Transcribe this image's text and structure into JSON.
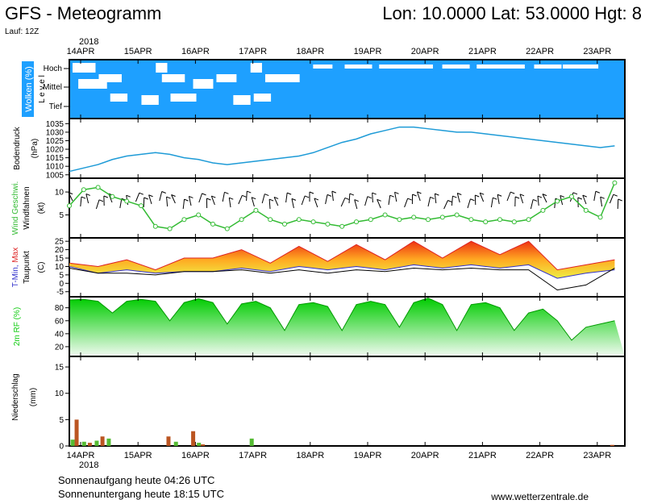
{
  "header": {
    "title": "GFS - Meteogramm",
    "location": "Lon: 10.0000 Lat: 53.0000 Hgt: 8",
    "run": "Lauf: 12Z"
  },
  "dates": {
    "year": "2018",
    "days": [
      "14APR",
      "15APR",
      "16APR",
      "17APR",
      "18APR",
      "19APR",
      "20APR",
      "21APR",
      "22APR",
      "23APR"
    ]
  },
  "footer": {
    "sunrise": "Sonnenaufgang heute 04:26 UTC",
    "sunset": "Sonnenuntergang heute 18:15 UTC",
    "site": "www.wetterzentrale.de"
  },
  "colors": {
    "cloud": "#1ea0ff",
    "pressure": "#1e9bd7",
    "wind": "#33bb33",
    "tmin": "#3333cc",
    "tmax": "#dd2222",
    "rh": "#11cc11",
    "precip_rain": "#55bb33",
    "precip_conv": "#bb5522"
  },
  "chart_data": [
    {
      "type": "heatmap",
      "title": "Wolken (%)",
      "ylabel": "Level",
      "levels": [
        "Hoch",
        "Mittel",
        "Tief"
      ],
      "note": "Dense cloud cover through most of the period"
    },
    {
      "type": "line",
      "ylabel": "Bodendruck (hPa)",
      "yticks": [
        1005,
        1010,
        1015,
        1020,
        1025,
        1030,
        1035
      ],
      "ylim": [
        1003,
        1038
      ],
      "series": [
        {
          "x": [
            0,
            0.25,
            0.5,
            0.75,
            1,
            1.25,
            1.5,
            1.75,
            2,
            2.25,
            2.5,
            2.75,
            3,
            3.25,
            3.5,
            3.75,
            4,
            4.25,
            4.5,
            4.75,
            5,
            5.25,
            5.5,
            5.75,
            6,
            6.25,
            6.5,
            6.75,
            7,
            7.25,
            7.5,
            7.75,
            8,
            8.25,
            8.5,
            8.75,
            9,
            9.25,
            9.5
          ],
          "values": [
            1007,
            1009,
            1011,
            1014,
            1016,
            1017,
            1018,
            1017,
            1015,
            1014,
            1012,
            1011,
            1012,
            1013,
            1014,
            1015,
            1016,
            1018,
            1021,
            1024,
            1026,
            1029,
            1031,
            1033,
            1033,
            1032,
            1031,
            1030,
            1030,
            1029,
            1028,
            1027,
            1026,
            1025,
            1024,
            1023,
            1022,
            1021,
            1022
          ]
        }
      ]
    },
    {
      "type": "line",
      "ylabel": "Wind Geschwi. Windfahnen (kt)",
      "yticks": [
        5,
        10
      ],
      "ylim": [
        0,
        13
      ],
      "series": [
        {
          "name": "Wind Geschwi.",
          "x": [
            0,
            0.25,
            0.5,
            0.75,
            1,
            1.25,
            1.5,
            1.75,
            2,
            2.25,
            2.5,
            2.75,
            3,
            3.25,
            3.5,
            3.75,
            4,
            4.25,
            4.5,
            4.75,
            5,
            5.25,
            5.5,
            5.75,
            6,
            6.25,
            6.5,
            6.75,
            7,
            7.25,
            7.5,
            7.75,
            8,
            8.25,
            8.5,
            8.75,
            9,
            9.25,
            9.5
          ],
          "values": [
            7,
            10.5,
            11,
            9,
            8,
            7,
            2.5,
            2,
            4,
            5,
            3,
            2,
            4,
            6,
            4,
            3,
            4,
            3.5,
            3,
            2.5,
            3.5,
            4,
            5,
            4,
            4.5,
            4,
            4.5,
            5,
            4,
            3.5,
            4,
            3.5,
            4,
            6,
            8,
            9,
            6,
            4.5,
            12
          ]
        }
      ]
    },
    {
      "type": "area",
      "ylabel": "T-Min, Max Taupunkt (C)",
      "yticks": [
        -5,
        0,
        5,
        10,
        15,
        20,
        25
      ],
      "ylim": [
        -8,
        27
      ],
      "series": [
        {
          "name": "T-Max",
          "x": [
            0,
            0.5,
            1,
            1.5,
            2,
            2.5,
            3,
            3.5,
            4,
            4.5,
            5,
            5.5,
            6,
            6.5,
            7,
            7.5,
            8,
            8.5,
            9,
            9.5
          ],
          "values": [
            12,
            10,
            14,
            8,
            15,
            15,
            20,
            12,
            22,
            13,
            23,
            14,
            25,
            15,
            25,
            17,
            25,
            8,
            11,
            14
          ]
        },
        {
          "name": "T-Min",
          "x": [
            0,
            0.5,
            1,
            1.5,
            2,
            2.5,
            3,
            3.5,
            4,
            4.5,
            5,
            5.5,
            6,
            6.5,
            7,
            7.5,
            8,
            8.5,
            9,
            9.5
          ],
          "values": [
            10,
            6,
            8,
            6,
            7,
            7,
            9,
            7,
            10,
            8,
            10,
            8,
            11,
            9,
            11,
            9,
            11,
            3,
            6,
            8
          ]
        },
        {
          "name": "Taupunkt",
          "x": [
            0,
            0.5,
            1,
            1.5,
            2,
            2.5,
            3,
            3.5,
            4,
            4.5,
            5,
            5.5,
            6,
            6.5,
            7,
            7.5,
            8,
            8.5,
            9,
            9.5
          ],
          "values": [
            9,
            6,
            6,
            5,
            7,
            7,
            8,
            6,
            8,
            6,
            8,
            7,
            9,
            8,
            9,
            8,
            8,
            -4,
            -1,
            9
          ]
        }
      ]
    },
    {
      "type": "area",
      "ylabel": "2m RF (%)",
      "yticks": [
        20,
        40,
        60,
        80
      ],
      "ylim": [
        5,
        97
      ],
      "series": [
        {
          "x": [
            0,
            0.25,
            0.5,
            0.75,
            1,
            1.25,
            1.5,
            1.75,
            2,
            2.25,
            2.5,
            2.75,
            3,
            3.25,
            3.5,
            3.75,
            4,
            4.25,
            4.5,
            4.75,
            5,
            5.25,
            5.5,
            5.75,
            6,
            6.25,
            6.5,
            6.75,
            7,
            7.25,
            7.5,
            7.75,
            8,
            8.25,
            8.5,
            8.75,
            9,
            9.25,
            9.5
          ],
          "values": [
            92,
            93,
            90,
            72,
            90,
            93,
            90,
            60,
            88,
            94,
            88,
            55,
            86,
            90,
            80,
            45,
            85,
            88,
            82,
            45,
            85,
            90,
            85,
            50,
            88,
            95,
            85,
            45,
            85,
            88,
            80,
            45,
            72,
            78,
            60,
            30,
            50,
            55,
            60
          ]
        }
      ]
    },
    {
      "type": "bar",
      "ylabel": "Niederschlag (mm)",
      "yticks": [
        0,
        5,
        10,
        15
      ],
      "ylim": [
        0,
        17
      ],
      "series": [
        {
          "name": "Niederschlag",
          "x": [
            0.05,
            0.12,
            0.25,
            0.35,
            0.47,
            0.57,
            0.68,
            1.72,
            1.85,
            2.15,
            2.25,
            2.32,
            3.17,
            9.45
          ],
          "values": [
            1.2,
            5,
            0.8,
            0.6,
            1,
            1.8,
            1.4,
            1.8,
            0.8,
            2.8,
            0.6,
            0.3,
            1.4,
            0.2
          ]
        }
      ]
    }
  ]
}
